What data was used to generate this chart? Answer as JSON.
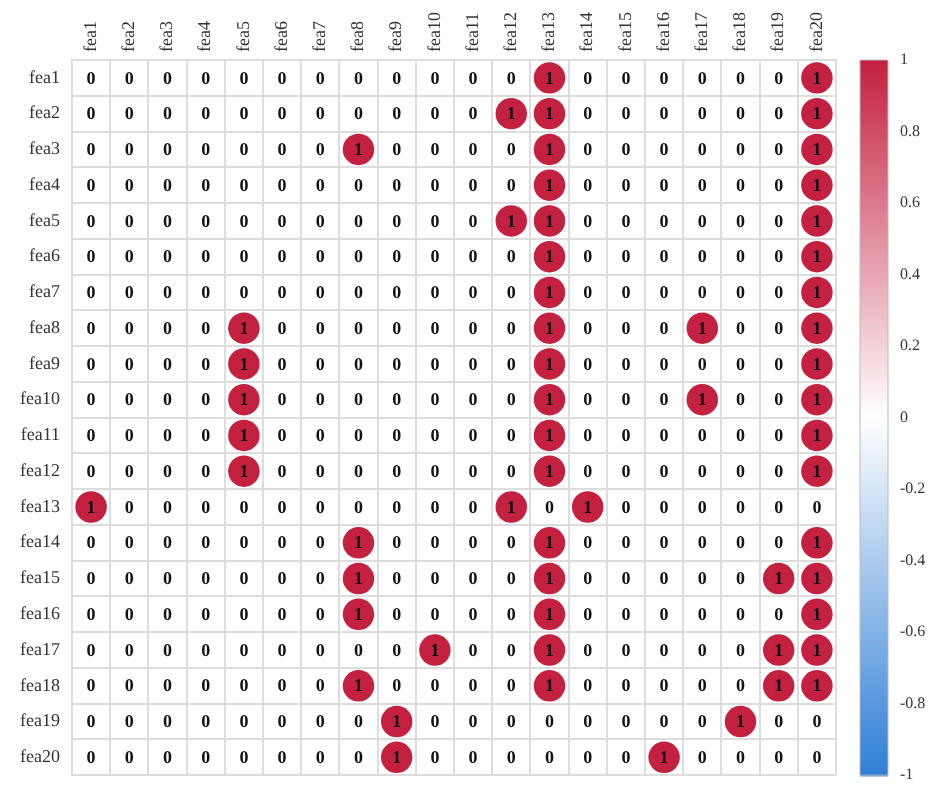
{
  "chart_data": {
    "type": "heatmap",
    "categories": [
      "fea1",
      "fea2",
      "fea3",
      "fea4",
      "fea5",
      "fea6",
      "fea7",
      "fea8",
      "fea9",
      "fea10",
      "fea11",
      "fea12",
      "fea13",
      "fea14",
      "fea15",
      "fea16",
      "fea17",
      "fea18",
      "fea19",
      "fea20"
    ],
    "y_categories": [
      "fea1",
      "fea2",
      "fea3",
      "fea4",
      "fea5",
      "fea6",
      "fea7",
      "fea8",
      "fea9",
      "fea10",
      "fea11",
      "fea12",
      "fea13",
      "fea14",
      "fea15",
      "fea16",
      "fea17",
      "fea18",
      "fea19",
      "fea20"
    ],
    "cells": [
      [
        0,
        0,
        0,
        0,
        0,
        0,
        0,
        0,
        0,
        0,
        0,
        0,
        1,
        0,
        0,
        0,
        0,
        0,
        0,
        1
      ],
      [
        0,
        0,
        0,
        0,
        0,
        0,
        0,
        0,
        0,
        0,
        0,
        1,
        1,
        0,
        0,
        0,
        0,
        0,
        0,
        1
      ],
      [
        0,
        0,
        0,
        0,
        0,
        0,
        0,
        1,
        0,
        0,
        0,
        0,
        1,
        0,
        0,
        0,
        0,
        0,
        0,
        1
      ],
      [
        0,
        0,
        0,
        0,
        0,
        0,
        0,
        0,
        0,
        0,
        0,
        0,
        1,
        0,
        0,
        0,
        0,
        0,
        0,
        1
      ],
      [
        0,
        0,
        0,
        0,
        0,
        0,
        0,
        0,
        0,
        0,
        0,
        1,
        1,
        0,
        0,
        0,
        0,
        0,
        0,
        1
      ],
      [
        0,
        0,
        0,
        0,
        0,
        0,
        0,
        0,
        0,
        0,
        0,
        0,
        1,
        0,
        0,
        0,
        0,
        0,
        0,
        1
      ],
      [
        0,
        0,
        0,
        0,
        0,
        0,
        0,
        0,
        0,
        0,
        0,
        0,
        1,
        0,
        0,
        0,
        0,
        0,
        0,
        1
      ],
      [
        0,
        0,
        0,
        0,
        1,
        0,
        0,
        0,
        0,
        0,
        0,
        0,
        1,
        0,
        0,
        0,
        1,
        0,
        0,
        1
      ],
      [
        0,
        0,
        0,
        0,
        1,
        0,
        0,
        0,
        0,
        0,
        0,
        0,
        1,
        0,
        0,
        0,
        0,
        0,
        0,
        1
      ],
      [
        0,
        0,
        0,
        0,
        1,
        0,
        0,
        0,
        0,
        0,
        0,
        0,
        1,
        0,
        0,
        0,
        1,
        0,
        0,
        1
      ],
      [
        0,
        0,
        0,
        0,
        1,
        0,
        0,
        0,
        0,
        0,
        0,
        0,
        1,
        0,
        0,
        0,
        0,
        0,
        0,
        1
      ],
      [
        0,
        0,
        0,
        0,
        1,
        0,
        0,
        0,
        0,
        0,
        0,
        0,
        1,
        0,
        0,
        0,
        0,
        0,
        0,
        1
      ],
      [
        1,
        0,
        0,
        0,
        0,
        0,
        0,
        0,
        0,
        0,
        0,
        1,
        0,
        1,
        0,
        0,
        0,
        0,
        0,
        0
      ],
      [
        0,
        0,
        0,
        0,
        0,
        0,
        0,
        1,
        0,
        0,
        0,
        0,
        1,
        0,
        0,
        0,
        0,
        0,
        0,
        1
      ],
      [
        0,
        0,
        0,
        0,
        0,
        0,
        0,
        1,
        0,
        0,
        0,
        0,
        1,
        0,
        0,
        0,
        0,
        0,
        1,
        1
      ],
      [
        0,
        0,
        0,
        0,
        0,
        0,
        0,
        1,
        0,
        0,
        0,
        0,
        1,
        0,
        0,
        0,
        0,
        0,
        0,
        1
      ],
      [
        0,
        0,
        0,
        0,
        0,
        0,
        0,
        0,
        0,
        1,
        0,
        0,
        1,
        0,
        0,
        0,
        0,
        0,
        1,
        1
      ],
      [
        0,
        0,
        0,
        0,
        0,
        0,
        0,
        1,
        0,
        0,
        0,
        0,
        1,
        0,
        0,
        0,
        0,
        0,
        1,
        1
      ],
      [
        0,
        0,
        0,
        0,
        0,
        0,
        0,
        0,
        1,
        0,
        0,
        0,
        0,
        0,
        0,
        0,
        0,
        1,
        0,
        0
      ],
      [
        0,
        0,
        0,
        0,
        0,
        0,
        0,
        0,
        1,
        0,
        0,
        0,
        0,
        0,
        0,
        1,
        0,
        0,
        0,
        0
      ]
    ],
    "clim": [
      -1,
      1
    ],
    "cticks": [
      1,
      0.8,
      0.6,
      0.4,
      0.2,
      0,
      -0.2,
      -0.4,
      -0.6,
      -0.8,
      -1
    ],
    "data_labels": true,
    "grid": true,
    "legend": false
  }
}
